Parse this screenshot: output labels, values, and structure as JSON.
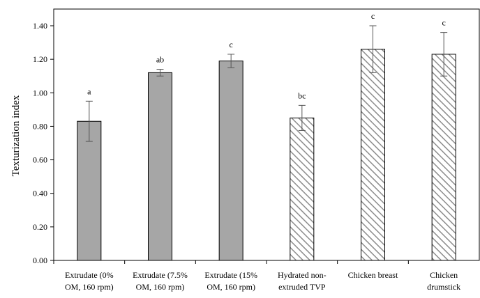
{
  "chart_data": {
    "type": "bar",
    "title": "",
    "xlabel": "",
    "ylabel": "Texturization index",
    "ylim": [
      0,
      1.4
    ],
    "yticks": [
      "0.00",
      "0.20",
      "0.40",
      "0.60",
      "0.80",
      "1.00",
      "1.20",
      "1.40"
    ],
    "grid": false,
    "categories": [
      [
        "Extrudate (0%",
        "OM, 160 rpm)"
      ],
      [
        "Extrudate (7.5%",
        "OM, 160 rpm)"
      ],
      [
        "Extrudate (15%",
        "OM, 160 rpm)"
      ],
      [
        "Hydrated non-",
        "extruded TVP"
      ],
      [
        "Chicken breast"
      ],
      [
        "Chicken",
        "drumstick"
      ]
    ],
    "values": [
      0.83,
      1.12,
      1.19,
      0.85,
      1.26,
      1.23
    ],
    "errors": [
      0.12,
      0.02,
      0.04,
      0.075,
      0.14,
      0.13
    ],
    "significance_letters": [
      "a",
      "ab",
      "c",
      "bc",
      "c",
      "c"
    ],
    "bar_styles": [
      "solid",
      "solid",
      "solid",
      "hatched",
      "hatched",
      "hatched"
    ],
    "colors": {
      "solid_fill": "#a6a6a6",
      "hatch_line": "#8c8c8c",
      "outline": "#000000"
    }
  }
}
